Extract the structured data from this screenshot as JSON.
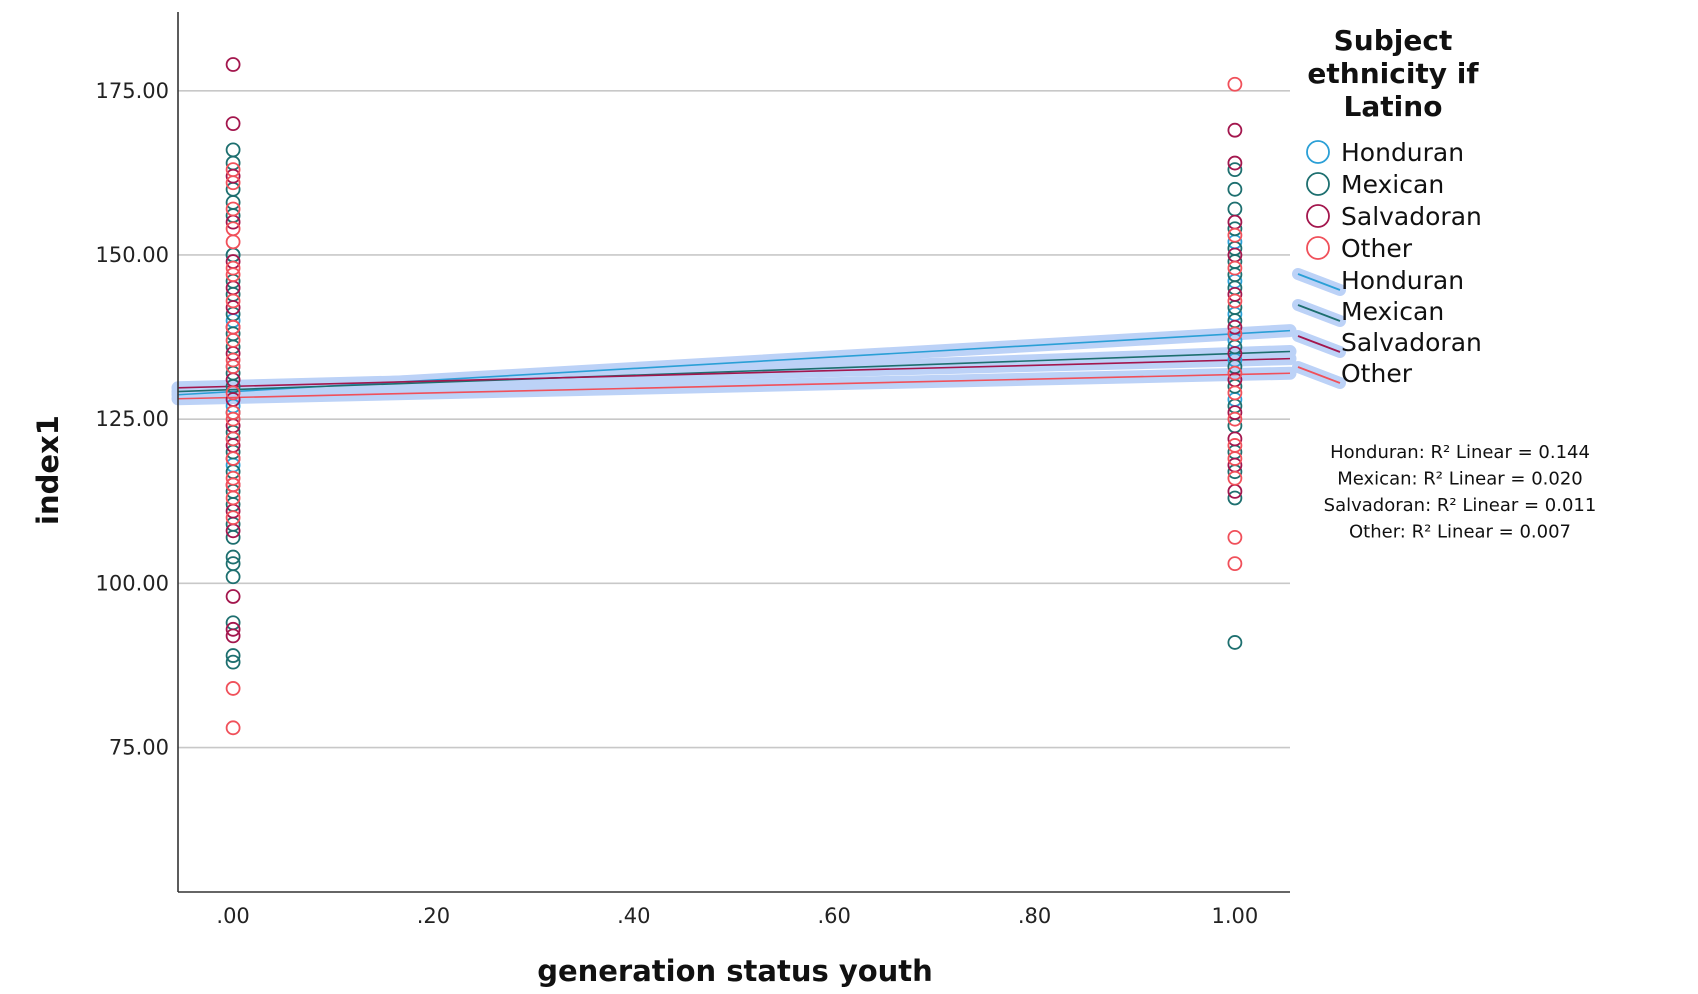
{
  "chart_data": {
    "type": "scatter",
    "title": "",
    "xlabel": "generation status  youth",
    "ylabel": "index1",
    "xlim": [
      -0.055,
      1.055
    ],
    "ylim": [
      53,
      187
    ],
    "x_ticks": [
      0,
      0.2,
      0.4,
      0.6,
      0.8,
      1.0
    ],
    "x_tick_labels": [
      ".00",
      ".20",
      ".40",
      ".60",
      ".80",
      "1.00"
    ],
    "y_ticks": [
      75,
      100,
      125,
      150,
      175
    ],
    "y_tick_labels": [
      "75.00",
      "100.00",
      "125.00",
      "150.00",
      "175.00"
    ],
    "grid": "horizontal",
    "legend": {
      "title_lines": [
        "Subject",
        "ethnicity if",
        "Latino"
      ],
      "placement": "right",
      "markers": [
        "Honduran",
        "Mexican",
        "Salvadoran",
        "Other"
      ],
      "lines": [
        "Honduran",
        "Mexican",
        "Salvadoran",
        "Other"
      ]
    },
    "series": [
      {
        "name": "Honduran",
        "color": "#2a9fd6",
        "points": [
          {
            "x": 0,
            "y": 150
          },
          {
            "x": 0,
            "y": 140
          },
          {
            "x": 0,
            "y": 133
          },
          {
            "x": 0,
            "y": 127
          },
          {
            "x": 0,
            "y": 122
          },
          {
            "x": 0,
            "y": 118
          },
          {
            "x": 1,
            "y": 152
          },
          {
            "x": 1,
            "y": 146
          },
          {
            "x": 1,
            "y": 141
          },
          {
            "x": 1,
            "y": 137
          },
          {
            "x": 1,
            "y": 134
          },
          {
            "x": 1,
            "y": 128
          }
        ],
        "fit": {
          "intercept": 129.2,
          "slope": 8.8
        },
        "r2_label": "Honduran: R² Linear = 0.144"
      },
      {
        "name": "Mexican",
        "color": "#1d6f6f",
        "points": [
          {
            "x": 0,
            "y": 166
          },
          {
            "x": 0,
            "y": 164
          },
          {
            "x": 0,
            "y": 160
          },
          {
            "x": 0,
            "y": 158
          },
          {
            "x": 0,
            "y": 156
          },
          {
            "x": 0,
            "y": 150
          },
          {
            "x": 0,
            "y": 146
          },
          {
            "x": 0,
            "y": 144
          },
          {
            "x": 0,
            "y": 141
          },
          {
            "x": 0,
            "y": 138
          },
          {
            "x": 0,
            "y": 136
          },
          {
            "x": 0,
            "y": 132
          },
          {
            "x": 0,
            "y": 130
          },
          {
            "x": 0,
            "y": 126
          },
          {
            "x": 0,
            "y": 123
          },
          {
            "x": 0,
            "y": 120
          },
          {
            "x": 0,
            "y": 117
          },
          {
            "x": 0,
            "y": 114
          },
          {
            "x": 0,
            "y": 112
          },
          {
            "x": 0,
            "y": 109
          },
          {
            "x": 0,
            "y": 107
          },
          {
            "x": 0,
            "y": 104
          },
          {
            "x": 0,
            "y": 103
          },
          {
            "x": 0,
            "y": 101
          },
          {
            "x": 0,
            "y": 94
          },
          {
            "x": 0,
            "y": 89
          },
          {
            "x": 0,
            "y": 88
          },
          {
            "x": 1,
            "y": 163
          },
          {
            "x": 1,
            "y": 160
          },
          {
            "x": 1,
            "y": 157
          },
          {
            "x": 1,
            "y": 154
          },
          {
            "x": 1,
            "y": 151
          },
          {
            "x": 1,
            "y": 149
          },
          {
            "x": 1,
            "y": 147
          },
          {
            "x": 1,
            "y": 145
          },
          {
            "x": 1,
            "y": 142
          },
          {
            "x": 1,
            "y": 140
          },
          {
            "x": 1,
            "y": 136
          },
          {
            "x": 1,
            "y": 133
          },
          {
            "x": 1,
            "y": 130
          },
          {
            "x": 1,
            "y": 127
          },
          {
            "x": 1,
            "y": 124
          },
          {
            "x": 1,
            "y": 120
          },
          {
            "x": 1,
            "y": 117
          },
          {
            "x": 1,
            "y": 113
          },
          {
            "x": 1,
            "y": 91
          }
        ],
        "fit": {
          "intercept": 129.5,
          "slope": 5.5
        },
        "r2_label": "Mexican: R² Linear = 0.020"
      },
      {
        "name": "Salvadoran",
        "color": "#a3164d",
        "points": [
          {
            "x": 0,
            "y": 179
          },
          {
            "x": 0,
            "y": 170
          },
          {
            "x": 0,
            "y": 162
          },
          {
            "x": 0,
            "y": 155
          },
          {
            "x": 0,
            "y": 149
          },
          {
            "x": 0,
            "y": 145
          },
          {
            "x": 0,
            "y": 142
          },
          {
            "x": 0,
            "y": 139
          },
          {
            "x": 0,
            "y": 135
          },
          {
            "x": 0,
            "y": 131
          },
          {
            "x": 0,
            "y": 128
          },
          {
            "x": 0,
            "y": 124
          },
          {
            "x": 0,
            "y": 121
          },
          {
            "x": 0,
            "y": 119
          },
          {
            "x": 0,
            "y": 115
          },
          {
            "x": 0,
            "y": 111
          },
          {
            "x": 0,
            "y": 108
          },
          {
            "x": 0,
            "y": 98
          },
          {
            "x": 0,
            "y": 93
          },
          {
            "x": 0,
            "y": 92
          },
          {
            "x": 1,
            "y": 169
          },
          {
            "x": 1,
            "y": 164
          },
          {
            "x": 1,
            "y": 155
          },
          {
            "x": 1,
            "y": 150
          },
          {
            "x": 1,
            "y": 144
          },
          {
            "x": 1,
            "y": 139
          },
          {
            "x": 1,
            "y": 135
          },
          {
            "x": 1,
            "y": 131
          },
          {
            "x": 1,
            "y": 126
          },
          {
            "x": 1,
            "y": 122
          },
          {
            "x": 1,
            "y": 118
          },
          {
            "x": 1,
            "y": 114
          }
        ],
        "fit": {
          "intercept": 130.0,
          "slope": 4.0
        },
        "r2_label": "Salvadoran: R² Linear = 0.011"
      },
      {
        "name": "Other",
        "color": "#f0505a",
        "points": [
          {
            "x": 0,
            "y": 163
          },
          {
            "x": 0,
            "y": 161
          },
          {
            "x": 0,
            "y": 157
          },
          {
            "x": 0,
            "y": 154
          },
          {
            "x": 0,
            "y": 152
          },
          {
            "x": 0,
            "y": 148
          },
          {
            "x": 0,
            "y": 147
          },
          {
            "x": 0,
            "y": 143
          },
          {
            "x": 0,
            "y": 139
          },
          {
            "x": 0,
            "y": 137
          },
          {
            "x": 0,
            "y": 134
          },
          {
            "x": 0,
            "y": 133
          },
          {
            "x": 0,
            "y": 129
          },
          {
            "x": 0,
            "y": 126
          },
          {
            "x": 0,
            "y": 125
          },
          {
            "x": 0,
            "y": 122
          },
          {
            "x": 0,
            "y": 119
          },
          {
            "x": 0,
            "y": 116
          },
          {
            "x": 0,
            "y": 115
          },
          {
            "x": 0,
            "y": 113
          },
          {
            "x": 0,
            "y": 110
          },
          {
            "x": 0,
            "y": 84
          },
          {
            "x": 0,
            "y": 78
          },
          {
            "x": 1,
            "y": 176
          },
          {
            "x": 1,
            "y": 153
          },
          {
            "x": 1,
            "y": 148
          },
          {
            "x": 1,
            "y": 143
          },
          {
            "x": 1,
            "y": 138
          },
          {
            "x": 1,
            "y": 132
          },
          {
            "x": 1,
            "y": 129
          },
          {
            "x": 1,
            "y": 125
          },
          {
            "x": 1,
            "y": 121
          },
          {
            "x": 1,
            "y": 119
          },
          {
            "x": 1,
            "y": 116
          },
          {
            "x": 1,
            "y": 107
          },
          {
            "x": 1,
            "y": 103
          }
        ],
        "fit": {
          "intercept": 128.3,
          "slope": 3.5
        },
        "r2_label": "Other: R² Linear = 0.007"
      }
    ]
  }
}
